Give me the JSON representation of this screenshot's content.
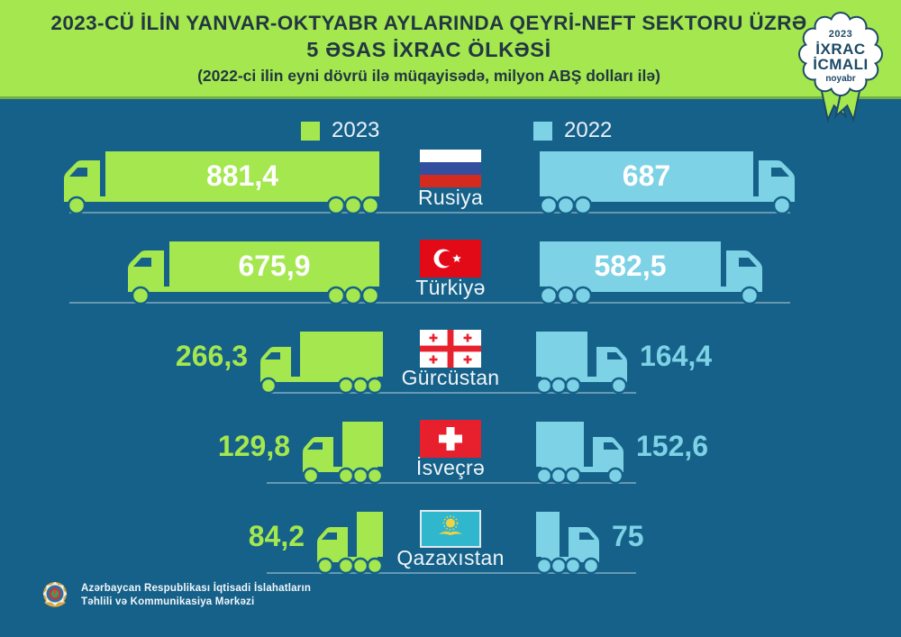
{
  "header": {
    "title_line1": "2023-CÜ İLİN YANVAR-OKTYABR AYLARINDA QEYRİ-NEFT SEKTORU ÜZRƏ",
    "title_line2": "5 ƏSAS İXRAC ÖLKƏSİ",
    "subtitle": "(2022-ci ilin eyni dövrü ilə müqayisədə, milyon ABŞ dolları ilə)"
  },
  "badge": {
    "year": "2023",
    "line1": "İXRAC",
    "line2": "İCMALI",
    "month": "noyabr"
  },
  "legend": [
    {
      "label": "2023",
      "color": "#a4e74e"
    },
    {
      "label": "2022",
      "color": "#7dd2e5"
    }
  ],
  "chart_data": {
    "type": "bar",
    "title": "2023-cü ilin yanvar-oktyabr aylarında qeyri-neft sektoru üzrə 5 əsas ixrac ölkəsi",
    "subtitle": "2022-ci ilin eyni dövrü ilə müqayisədə, milyon ABŞ dolları ilə",
    "unit": "milyon ABŞ dolları",
    "orientation": "horizontal-pictogram-trucks",
    "categories": [
      "Rusiya",
      "Türkiyə",
      "Gürcüstan",
      "İsveçrə",
      "Qazaxıstan"
    ],
    "flags": [
      "ru",
      "tr",
      "ge",
      "ch",
      "kz"
    ],
    "series": [
      {
        "name": "2023",
        "color": "#a4e74e",
        "values": [
          881.4,
          675.9,
          266.3,
          129.8,
          84.2
        ],
        "labels": [
          "881,4",
          "675,9",
          "266,3",
          "129,8",
          "84,2"
        ]
      },
      {
        "name": "2022",
        "color": "#7dd2e5",
        "values": [
          687,
          582.5,
          164.4,
          152.6,
          75
        ],
        "labels": [
          "687",
          "582,5",
          "164,4",
          "152,6",
          "75"
        ]
      }
    ]
  },
  "footer": {
    "line1": "Azərbaycan Respublikası İqtisadi İslahatların",
    "line2": "Təhlili və Kommunikasiya Mərkəzi"
  },
  "colors": {
    "background": "#166189",
    "header_bg": "#a4e74e",
    "green": "#a4e74e",
    "blue": "#7dd2e5",
    "road": "#6699b1",
    "title_text": "#233743",
    "light_text": "#eef5f8",
    "badge_navy": "#1d4a66"
  }
}
